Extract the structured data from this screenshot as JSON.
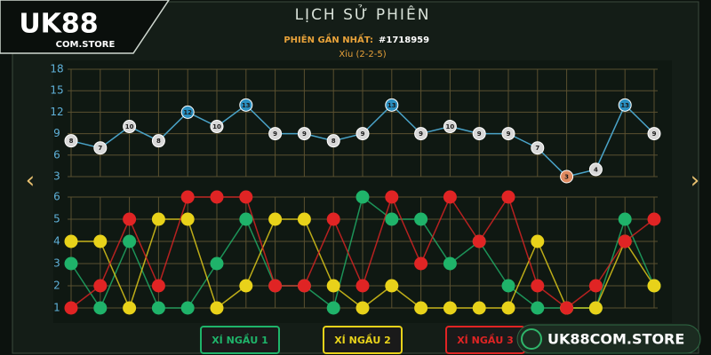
{
  "header": {
    "logo": "UK88",
    "logo_sub": "COM.STORE",
    "title": "LỊCH SỬ PHIÊN",
    "latest_label": "PHIÊN GẦN NHẤT:",
    "latest_id": "#1718959",
    "result": "Xỉu (2-2-5)"
  },
  "watermark": "UK88COM.STORE",
  "chart_data": [
    {
      "type": "line",
      "line_color": "#4aa3c8",
      "ylim": [
        3,
        18
      ],
      "yticks": [
        3,
        6,
        9,
        12,
        15,
        18
      ],
      "values": [
        8,
        7,
        10,
        8,
        12,
        10,
        13,
        9,
        9,
        8,
        9,
        13,
        9,
        10,
        9,
        9,
        7,
        3,
        4,
        13,
        9
      ],
      "point_colors": [
        "#d8d8d8",
        "#d8d8d8",
        "#d8d8d8",
        "#d8d8d8",
        "#2a8fc0",
        "#d8d8d8",
        "#2a8fc0",
        "#d8d8d8",
        "#d8d8d8",
        "#d8d8d8",
        "#d8d8d8",
        "#2a8fc0",
        "#d8d8d8",
        "#d8d8d8",
        "#d8d8d8",
        "#d8d8d8",
        "#d8d8d8",
        "#e08a60",
        "#d8d8d8",
        "#2a8fc0",
        "#d8d8d8"
      ]
    },
    {
      "type": "line",
      "ylim": [
        1,
        6
      ],
      "yticks": [
        1,
        2,
        3,
        4,
        5,
        6
      ],
      "series": [
        {
          "name": "XÍ NGẦU 1",
          "color": "#1fb36a",
          "values": [
            3,
            1,
            4,
            1,
            1,
            3,
            5,
            2,
            2,
            1,
            6,
            5,
            5,
            3,
            4,
            2,
            1,
            1,
            1,
            5,
            2
          ]
        },
        {
          "name": "XÍ NGẦU 2",
          "color": "#e8d21a",
          "values": [
            4,
            4,
            1,
            5,
            5,
            1,
            2,
            5,
            5,
            2,
            1,
            2,
            1,
            1,
            1,
            1,
            4,
            1,
            1,
            4,
            2
          ]
        },
        {
          "name": "XÍ NGẦU 3",
          "color": "#e02424",
          "values": [
            1,
            2,
            5,
            2,
            6,
            6,
            6,
            2,
            2,
            5,
            2,
            6,
            3,
            6,
            4,
            6,
            2,
            1,
            2,
            4,
            5
          ]
        }
      ]
    }
  ]
}
